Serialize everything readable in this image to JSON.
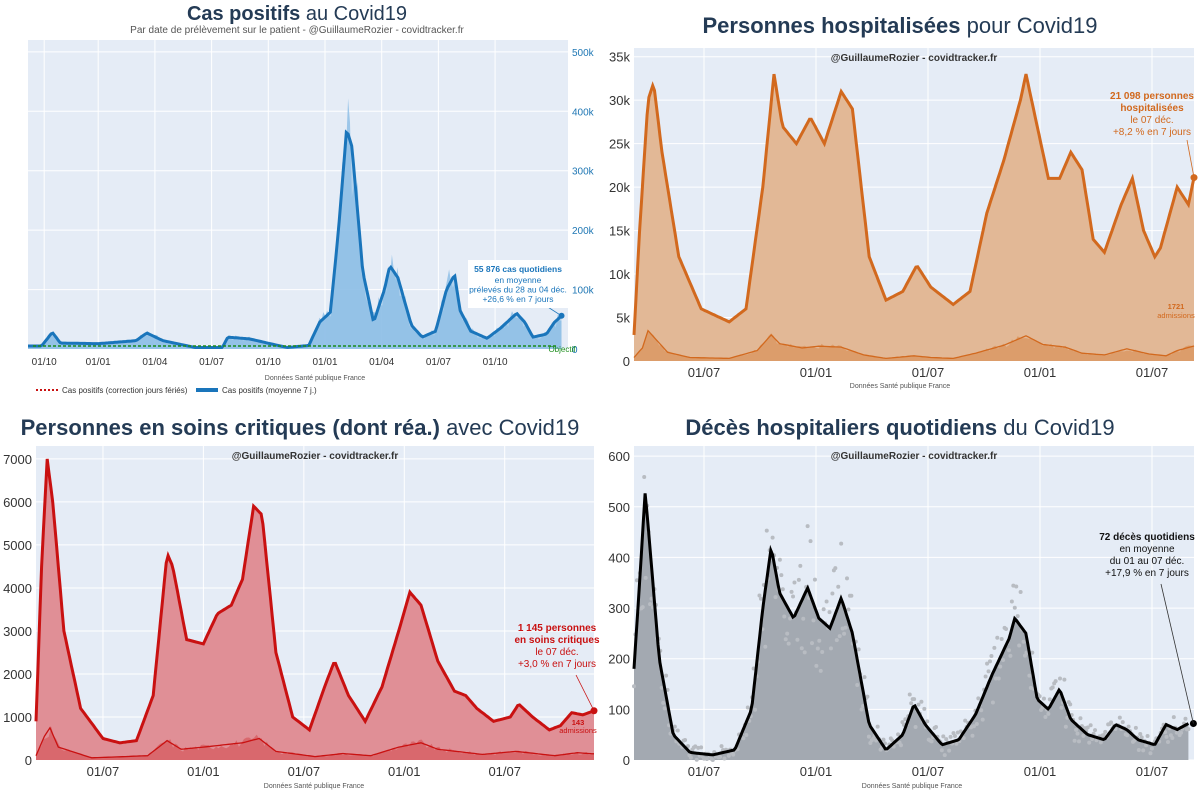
{
  "colors": {
    "plot_bg": "#e5ecf6",
    "blue": "#1a75bb",
    "blue_fill": "#8fbfe6",
    "orange": "#d2691e",
    "orange_fill": "#e2b896",
    "red": "#c91111",
    "red_fill": "#e08f96",
    "black": "#000000",
    "gray_fill": "#a3a9b1",
    "dots": "#b8bcc2",
    "green": "#1a8c1a"
  },
  "chart_data": [
    {
      "type": "area",
      "title_bold": "Cas positifs",
      "title_rest": "au Covid19",
      "subtitle": "Par date de prélèvement sur le patient - @GuillaumeRozier - covidtracker.fr",
      "source": "Données Santé publique France",
      "x_ticks": [
        "01/10",
        "01/01",
        "01/04",
        "01/07",
        "01/10",
        "01/01",
        "01/04",
        "01/07",
        "01/10"
      ],
      "y_ticks": [
        "0",
        "100k",
        "200k",
        "300k",
        "400k",
        "500k"
      ],
      "ylim": [
        0,
        520000
      ],
      "y_axis_side": "right",
      "objective_label": "Objectif",
      "legend": [
        "Cas positifs (correction jours fériés)",
        "Cas positifs (moyenne 7 j.)"
      ],
      "annotation": [
        "55 876 cas quotidiens",
        "en moyenne",
        "prélevés du 28 au 04 déc.",
        "+26,6 % en 7 jours"
      ],
      "series": [
        {
          "name": "Cas positifs (moyenne 7 j.)",
          "points": [
            [
              0,
              5000
            ],
            [
              0.025,
              5000
            ],
            [
              0.045,
              28000
            ],
            [
              0.06,
              10000
            ],
            [
              0.13,
              9000
            ],
            [
              0.2,
              14000
            ],
            [
              0.22,
              27000
            ],
            [
              0.25,
              14000
            ],
            [
              0.31,
              2500
            ],
            [
              0.36,
              2500
            ],
            [
              0.37,
              20000
            ],
            [
              0.41,
              17000
            ],
            [
              0.48,
              2500
            ],
            [
              0.52,
              6000
            ],
            [
              0.54,
              45000
            ],
            [
              0.56,
              62000
            ],
            [
              0.575,
              200000
            ],
            [
              0.59,
              370000
            ],
            [
              0.6,
              340000
            ],
            [
              0.62,
              130000
            ],
            [
              0.64,
              45000
            ],
            [
              0.66,
              100000
            ],
            [
              0.67,
              140000
            ],
            [
              0.685,
              120000
            ],
            [
              0.71,
              40000
            ],
            [
              0.73,
              20000
            ],
            [
              0.755,
              30000
            ],
            [
              0.775,
              100000
            ],
            [
              0.79,
              125000
            ],
            [
              0.8,
              65000
            ],
            [
              0.82,
              30000
            ],
            [
              0.85,
              18000
            ],
            [
              0.875,
              35000
            ],
            [
              0.905,
              60000
            ],
            [
              0.92,
              45000
            ],
            [
              0.935,
              20000
            ],
            [
              0.96,
              25000
            ],
            [
              0.975,
              45000
            ],
            [
              0.988,
              55876
            ]
          ]
        }
      ]
    },
    {
      "type": "area",
      "title_bold": "Personnes hospitalisées",
      "title_rest": "pour Covid19",
      "subtitle": "@GuillaumeRozier - covidtracker.fr",
      "source": "Données Santé publique France",
      "x_ticks": [
        "01/07",
        "01/01",
        "01/07",
        "01/01",
        "01/07"
      ],
      "y_ticks": [
        "0",
        "5k",
        "10k",
        "15k",
        "20k",
        "25k",
        "30k",
        "35k"
      ],
      "ylim": [
        0,
        36000
      ],
      "annotation_bold": [
        "21 098 personnes",
        "hospitalisées"
      ],
      "annotation": [
        "le 07 déc.",
        "+8,2 % en 7 jours"
      ],
      "admissions_label": [
        "1721",
        "admissions"
      ],
      "series": [
        {
          "name": "hospitalisations",
          "points": [
            [
              0,
              3000
            ],
            [
              0.01,
              15000
            ],
            [
              0.025,
              30000
            ],
            [
              0.035,
              32000
            ],
            [
              0.05,
              24000
            ],
            [
              0.08,
              12000
            ],
            [
              0.12,
              6000
            ],
            [
              0.17,
              4500
            ],
            [
              0.2,
              6000
            ],
            [
              0.23,
              20000
            ],
            [
              0.25,
              33000
            ],
            [
              0.265,
              27000
            ],
            [
              0.29,
              25000
            ],
            [
              0.315,
              28000
            ],
            [
              0.34,
              25000
            ],
            [
              0.37,
              31000
            ],
            [
              0.39,
              29000
            ],
            [
              0.42,
              12000
            ],
            [
              0.45,
              7000
            ],
            [
              0.48,
              8000
            ],
            [
              0.505,
              11000
            ],
            [
              0.53,
              8500
            ],
            [
              0.57,
              6500
            ],
            [
              0.6,
              8000
            ],
            [
              0.63,
              17000
            ],
            [
              0.66,
              23000
            ],
            [
              0.69,
              30000
            ],
            [
              0.7,
              33000
            ],
            [
              0.72,
              27000
            ],
            [
              0.74,
              21000
            ],
            [
              0.76,
              21000
            ],
            [
              0.78,
              24000
            ],
            [
              0.8,
              22000
            ],
            [
              0.82,
              14000
            ],
            [
              0.84,
              12500
            ],
            [
              0.87,
              18000
            ],
            [
              0.89,
              21000
            ],
            [
              0.91,
              15000
            ],
            [
              0.93,
              12000
            ],
            [
              0.94,
              13000
            ],
            [
              0.97,
              20000
            ],
            [
              0.98,
              19000
            ],
            [
              0.99,
              18000
            ],
            [
              1,
              21098
            ]
          ]
        },
        {
          "name": "admissions",
          "points": [
            [
              0,
              400
            ],
            [
              0.015,
              1500
            ],
            [
              0.025,
              3500
            ],
            [
              0.06,
              1000
            ],
            [
              0.1,
              400
            ],
            [
              0.17,
              300
            ],
            [
              0.22,
              1200
            ],
            [
              0.245,
              3000
            ],
            [
              0.26,
              2000
            ],
            [
              0.3,
              1500
            ],
            [
              0.33,
              1700
            ],
            [
              0.37,
              1600
            ],
            [
              0.41,
              700
            ],
            [
              0.45,
              300
            ],
            [
              0.5,
              600
            ],
            [
              0.53,
              400
            ],
            [
              0.57,
              300
            ],
            [
              0.61,
              900
            ],
            [
              0.66,
              1800
            ],
            [
              0.7,
              2900
            ],
            [
              0.73,
              1900
            ],
            [
              0.77,
              1600
            ],
            [
              0.8,
              900
            ],
            [
              0.84,
              700
            ],
            [
              0.88,
              1400
            ],
            [
              0.92,
              800
            ],
            [
              0.95,
              600
            ],
            [
              0.97,
              1200
            ],
            [
              1,
              1721
            ]
          ]
        }
      ]
    },
    {
      "type": "area",
      "title_bold": "Personnes en soins critiques (dont réa.)",
      "title_rest": "avec Covid19",
      "subtitle": "@GuillaumeRozier - covidtracker.fr",
      "source": "Données Santé publique France",
      "x_ticks": [
        "01/07",
        "01/01",
        "01/07",
        "01/01",
        "01/07"
      ],
      "y_ticks": [
        "0",
        "1000",
        "2000",
        "3000",
        "4000",
        "5000",
        "6000",
        "7000"
      ],
      "ylim": [
        0,
        7300
      ],
      "annotation_bold": [
        "1 145 personnes",
        "en soins critiques"
      ],
      "annotation": [
        "le 07 déc.",
        "+3,0 % en 7 jours"
      ],
      "admissions_label": [
        "143",
        "admissions"
      ],
      "series": [
        {
          "name": "soins critiques",
          "points": [
            [
              0,
              900
            ],
            [
              0.01,
              4500
            ],
            [
              0.02,
              7000
            ],
            [
              0.03,
              6000
            ],
            [
              0.05,
              3000
            ],
            [
              0.08,
              1200
            ],
            [
              0.12,
              500
            ],
            [
              0.15,
              400
            ],
            [
              0.18,
              450
            ],
            [
              0.21,
              1500
            ],
            [
              0.235,
              4800
            ],
            [
              0.245,
              4500
            ],
            [
              0.27,
              2800
            ],
            [
              0.3,
              2700
            ],
            [
              0.325,
              3400
            ],
            [
              0.35,
              3600
            ],
            [
              0.37,
              4200
            ],
            [
              0.39,
              5900
            ],
            [
              0.405,
              5700
            ],
            [
              0.43,
              2500
            ],
            [
              0.46,
              1000
            ],
            [
              0.49,
              700
            ],
            [
              0.52,
              1800
            ],
            [
              0.535,
              2300
            ],
            [
              0.56,
              1500
            ],
            [
              0.59,
              900
            ],
            [
              0.62,
              1700
            ],
            [
              0.65,
              3000
            ],
            [
              0.67,
              3900
            ],
            [
              0.69,
              3600
            ],
            [
              0.72,
              2300
            ],
            [
              0.75,
              1600
            ],
            [
              0.77,
              1500
            ],
            [
              0.79,
              1200
            ],
            [
              0.82,
              900
            ],
            [
              0.85,
              1000
            ],
            [
              0.865,
              1300
            ],
            [
              0.89,
              1000
            ],
            [
              0.92,
              700
            ],
            [
              0.94,
              800
            ],
            [
              0.96,
              1100
            ],
            [
              0.98,
              1050
            ],
            [
              1,
              1145
            ]
          ]
        },
        {
          "name": "admissions",
          "points": [
            [
              0,
              100
            ],
            [
              0.015,
              550
            ],
            [
              0.025,
              750
            ],
            [
              0.04,
              300
            ],
            [
              0.1,
              50
            ],
            [
              0.2,
              100
            ],
            [
              0.235,
              450
            ],
            [
              0.26,
              250
            ],
            [
              0.3,
              300
            ],
            [
              0.37,
              400
            ],
            [
              0.4,
              500
            ],
            [
              0.43,
              200
            ],
            [
              0.5,
              80
            ],
            [
              0.55,
              150
            ],
            [
              0.6,
              100
            ],
            [
              0.65,
              300
            ],
            [
              0.69,
              400
            ],
            [
              0.72,
              250
            ],
            [
              0.8,
              130
            ],
            [
              0.86,
              200
            ],
            [
              0.93,
              100
            ],
            [
              0.97,
              170
            ],
            [
              1,
              143
            ]
          ]
        }
      ]
    },
    {
      "type": "area",
      "title_bold": "Décès hospitaliers quotidiens",
      "title_rest": "du Covid19",
      "subtitle": "@GuillaumeRozier - covidtracker.fr",
      "source": "Données Santé publique France",
      "x_ticks": [
        "01/07",
        "01/01",
        "01/07",
        "01/01",
        "01/07"
      ],
      "y_ticks": [
        "0",
        "100",
        "200",
        "300",
        "400",
        "500",
        "600"
      ],
      "ylim": [
        0,
        620
      ],
      "annotation_bold": [
        "72 décès quotidiens"
      ],
      "annotation": [
        "en moyenne",
        "du 01 au 07 déc.",
        "+17,9 % en 7 jours"
      ],
      "series": [
        {
          "name": "décès (moyenne 7 j.)",
          "points": [
            [
              0,
              180
            ],
            [
              0.01,
              350
            ],
            [
              0.02,
              530
            ],
            [
              0.03,
              400
            ],
            [
              0.045,
              200
            ],
            [
              0.07,
              50
            ],
            [
              0.1,
              15
            ],
            [
              0.14,
              10
            ],
            [
              0.18,
              20
            ],
            [
              0.21,
              100
            ],
            [
              0.23,
              300
            ],
            [
              0.245,
              420
            ],
            [
              0.26,
              330
            ],
            [
              0.285,
              280
            ],
            [
              0.31,
              340
            ],
            [
              0.33,
              280
            ],
            [
              0.35,
              260
            ],
            [
              0.37,
              320
            ],
            [
              0.39,
              250
            ],
            [
              0.42,
              70
            ],
            [
              0.45,
              20
            ],
            [
              0.48,
              50
            ],
            [
              0.5,
              110
            ],
            [
              0.52,
              70
            ],
            [
              0.55,
              30
            ],
            [
              0.58,
              40
            ],
            [
              0.61,
              90
            ],
            [
              0.64,
              170
            ],
            [
              0.67,
              240
            ],
            [
              0.68,
              280
            ],
            [
              0.7,
              250
            ],
            [
              0.72,
              120
            ],
            [
              0.74,
              100
            ],
            [
              0.76,
              140
            ],
            [
              0.78,
              80
            ],
            [
              0.81,
              50
            ],
            [
              0.84,
              40
            ],
            [
              0.86,
              70
            ],
            [
              0.88,
              60
            ],
            [
              0.9,
              40
            ],
            [
              0.93,
              30
            ],
            [
              0.95,
              70
            ],
            [
              0.97,
              60
            ],
            [
              0.99,
              72
            ]
          ]
        }
      ]
    }
  ]
}
